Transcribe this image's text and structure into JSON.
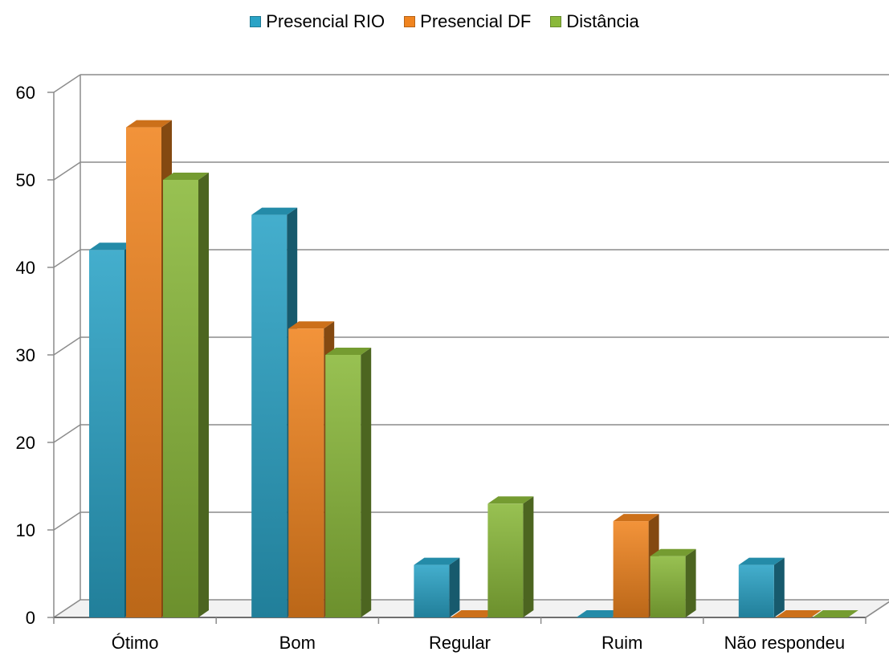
{
  "chart_data": {
    "type": "bar",
    "categories": [
      "Ótimo",
      "Bom",
      "Regular",
      "Ruim",
      "Não respondeu"
    ],
    "series": [
      {
        "name": "Presencial RIO",
        "values": [
          42,
          46,
          6,
          0,
          6
        ],
        "color": "#2aa3c6"
      },
      {
        "name": "Presencial DF",
        "values": [
          56,
          33,
          0,
          11,
          0
        ],
        "color": "#f0841f"
      },
      {
        "name": "Distância",
        "values": [
          50,
          30,
          13,
          7,
          0
        ],
        "color": "#8ab83a"
      }
    ],
    "yticks": [
      "0",
      "10",
      "20",
      "30",
      "40",
      "50",
      "60"
    ],
    "ylim": [
      0,
      60
    ],
    "legend_position": "top-center",
    "grid": true
  }
}
